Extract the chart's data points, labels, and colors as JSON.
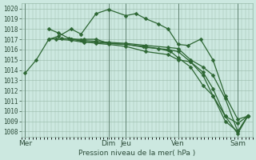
{
  "xlabel": "Pression niveau de la mer( hPa )",
  "bg_color": "#cce8e0",
  "grid_color": "#99bbaa",
  "line_color": "#2d6633",
  "vline_color": "#557766",
  "ylim": [
    1007.5,
    1020.5
  ],
  "yticks": [
    1008,
    1009,
    1010,
    1011,
    1012,
    1013,
    1014,
    1015,
    1016,
    1017,
    1018,
    1019,
    1020
  ],
  "xlim": [
    0,
    9.2
  ],
  "xtick_labels": [
    "Mer",
    "Dim",
    "Jeu",
    "Ven",
    "Sam"
  ],
  "xtick_positions": [
    0.15,
    3.5,
    4.2,
    6.3,
    8.7
  ],
  "vline_positions": [
    0.15,
    3.5,
    4.2,
    6.3,
    8.7
  ],
  "lines": [
    {
      "x": [
        0.15,
        0.6,
        1.1,
        1.6,
        2.0,
        2.5,
        3.0,
        3.5,
        4.2,
        4.9,
        5.5,
        6.0,
        6.3,
        6.8,
        7.3,
        7.7,
        8.2,
        8.7,
        9.1
      ],
      "y": [
        1013.7,
        1015.0,
        1017.0,
        1017.1,
        1017.0,
        1017.0,
        1017.0,
        1016.6,
        1016.5,
        1016.3,
        1016.1,
        1015.8,
        1015.2,
        1014.3,
        1012.5,
        1011.5,
        1009.0,
        1008.0,
        1009.5
      ]
    },
    {
      "x": [
        1.1,
        1.5,
        2.0,
        2.4,
        3.0,
        3.5,
        4.2,
        4.6,
        5.0,
        5.5,
        5.9,
        6.3,
        6.7,
        7.2,
        7.7,
        8.2,
        8.7,
        9.1
      ],
      "y": [
        1017.0,
        1017.3,
        1018.0,
        1017.5,
        1019.5,
        1019.9,
        1019.3,
        1019.5,
        1019.0,
        1018.5,
        1018.0,
        1016.5,
        1016.4,
        1017.0,
        1015.0,
        1011.5,
        1009.2,
        1009.5
      ]
    },
    {
      "x": [
        1.1,
        1.5,
        1.9,
        2.4,
        3.0,
        3.5,
        4.2,
        5.0,
        5.9,
        6.3,
        6.8,
        7.3,
        7.7,
        8.2,
        8.7,
        9.1
      ],
      "y": [
        1018.0,
        1017.6,
        1017.1,
        1016.9,
        1016.8,
        1016.7,
        1016.6,
        1016.4,
        1016.2,
        1016.1,
        1015.0,
        1014.3,
        1013.5,
        1011.2,
        1008.0,
        1009.5
      ]
    },
    {
      "x": [
        1.4,
        2.0,
        2.5,
        3.0,
        3.5,
        4.2,
        5.0,
        5.9,
        6.3,
        6.8,
        7.3,
        7.7,
        8.2,
        8.7,
        9.1
      ],
      "y": [
        1017.0,
        1016.9,
        1016.7,
        1016.7,
        1016.6,
        1016.5,
        1016.2,
        1016.0,
        1015.8,
        1014.8,
        1013.8,
        1012.2,
        1009.5,
        1008.8,
        1009.5
      ]
    },
    {
      "x": [
        2.0,
        2.5,
        3.0,
        3.5,
        4.2,
        5.0,
        5.9,
        6.3,
        6.8,
        7.3,
        7.7,
        8.2,
        8.7,
        9.1
      ],
      "y": [
        1017.0,
        1016.8,
        1016.6,
        1016.5,
        1016.3,
        1015.8,
        1015.5,
        1015.0,
        1014.8,
        1013.5,
        1011.5,
        1009.5,
        1007.8,
        1009.5
      ]
    }
  ],
  "marker": "D",
  "markersize": 2.5,
  "linewidth": 0.9,
  "xlabel_fontsize": 6.5,
  "ytick_fontsize": 5.5,
  "xtick_fontsize": 6.5
}
